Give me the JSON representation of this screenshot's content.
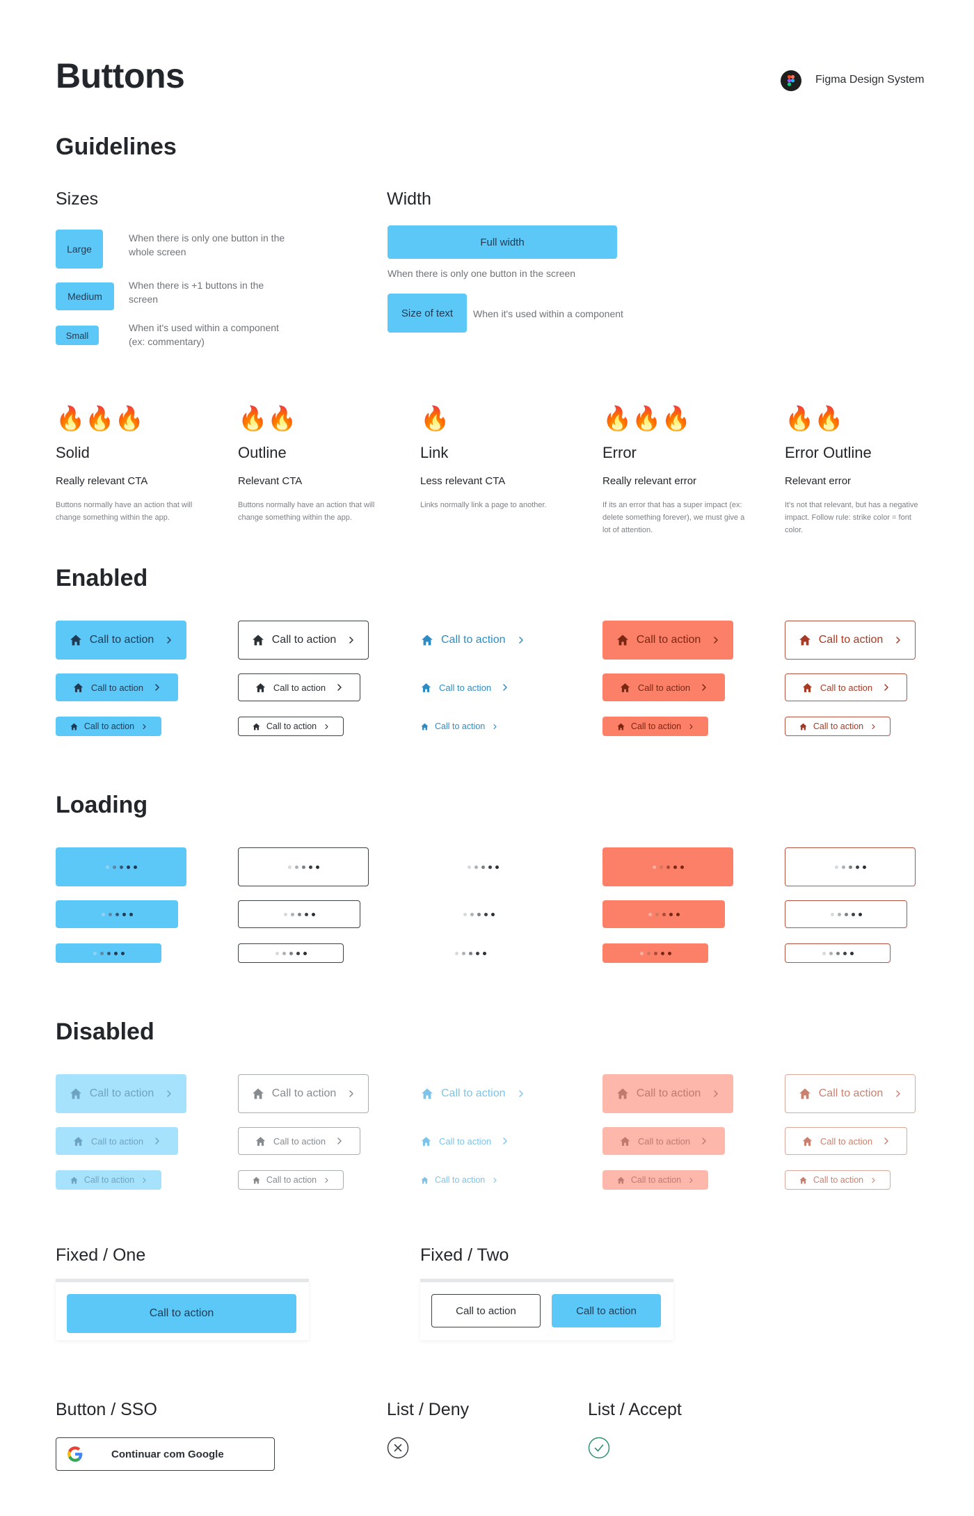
{
  "header": {
    "title": "Buttons",
    "brand": "Figma Design System",
    "brand_icon": "figma-logo-icon"
  },
  "guidelines": {
    "title": "Guidelines",
    "sizes": {
      "title": "Sizes",
      "items": [
        {
          "label": "Large",
          "desc": "When there is only one button in the whole screen"
        },
        {
          "label": "Medium",
          "desc": "When there is +1 buttons in the screen"
        },
        {
          "label": "Small",
          "desc": "When it's used within a component (ex: commentary)"
        }
      ]
    },
    "width": {
      "title": "Width",
      "full_label": "Full width",
      "full_desc": "When there is only one button in the screen",
      "text_label": "Size of text",
      "text_desc": "When it's used within a component"
    }
  },
  "types": [
    {
      "fires": "🔥🔥🔥",
      "name": "Solid",
      "sub": "Really relevant CTA",
      "desc": "Buttons normally have an action that will change something within the app."
    },
    {
      "fires": "🔥🔥",
      "name": "Outline",
      "sub": "Relevant CTA",
      "desc": "Buttons normally have an action that will change something within the app."
    },
    {
      "fires": "🔥",
      "name": "Link",
      "sub": "Less relevant CTA",
      "desc": "Links normally link a page to another."
    },
    {
      "fires": "🔥🔥🔥",
      "name": "Error",
      "sub": "Really relevant error",
      "desc": "If its an error that has a super impact (ex: delete something forever), we must give a lot of attention."
    },
    {
      "fires": "🔥🔥",
      "name": "Error Outline",
      "sub": "Relevant error",
      "desc": "It's not that relevant, but has a negative impact. Follow rule: strike color = font color."
    }
  ],
  "states": {
    "enabled": "Enabled",
    "loading": "Loading",
    "disabled": "Disabled"
  },
  "cta_label": "Call to action",
  "icons": {
    "home": "home-icon",
    "chevron": "chevron-right-icon"
  },
  "colors": {
    "solid": "#5cc8f8",
    "error": "#fc8068",
    "outline": "#3b4045",
    "error_outline": "#b8523f",
    "link": "#2e8cc4"
  },
  "fixed_one": {
    "title": "Fixed / One",
    "button": "Call to action"
  },
  "fixed_two": {
    "title": "Fixed / Two",
    "secondary": "Call to action",
    "primary": "Call to action"
  },
  "sso": {
    "title": "Button / SSO",
    "label": "Continuar com Google",
    "icon": "google-icon"
  },
  "list_deny": {
    "title": "List / Deny",
    "icon": "close-circle-icon"
  },
  "list_accept": {
    "title": "List / Accept",
    "icon": "check-circle-icon"
  }
}
